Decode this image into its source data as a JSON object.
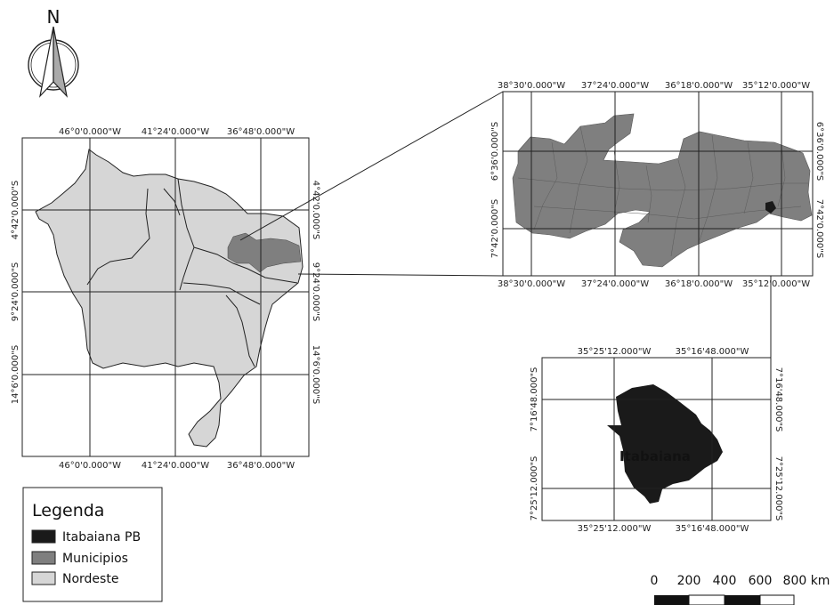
{
  "north": {
    "letter": "N"
  },
  "map_nordeste": {
    "top_lon_labels": [
      "46°0'0.000\"W",
      "41°24'0.000\"W",
      "36°48'0.000\"W"
    ],
    "bottom_lon_labels": [
      "46°0'0.000\"W",
      "41°24'0.000\"W",
      "36°48'0.000\"W"
    ],
    "left_lat_labels": [
      "4°42'0.000\"S",
      "9°24'0.000\"S",
      "14°6'0.000\"S"
    ],
    "right_lat_labels": [
      "4°42'0.000\"S",
      "9°24'0.000\"S",
      "14°6'0.000\"S"
    ]
  },
  "map_paraiba": {
    "top_lon_labels": [
      "38°30'0.000\"W",
      "37°24'0.000\"W",
      "36°18'0.000\"W",
      "35°12'0.000\"W"
    ],
    "bottom_lon_labels": [
      "38°30'0.000\"W",
      "37°24'0.000\"W",
      "36°18'0.000\"W",
      "35°12'0.000\"W"
    ],
    "left_lat_labels": [
      "6°36'0.000\"S",
      "7°42'0.000\"S"
    ],
    "right_lat_labels": [
      "6°36'0.000\"S",
      "7°42'0.000\"S"
    ]
  },
  "map_itabaiana": {
    "label": "Itabaiana",
    "top_lon_labels": [
      "35°25'12.000\"W",
      "35°16'48.000\"W"
    ],
    "bottom_lon_labels": [
      "35°25'12.000\"W",
      "35°16'48.000\"W"
    ],
    "left_lat_labels": [
      "7°16'48.000\"S",
      "7°25'12.000\"S"
    ],
    "right_lat_labels": [
      "7°16'48.000\"S",
      "7°25'12.000\"S"
    ]
  },
  "legend": {
    "title": "Legenda",
    "items": [
      {
        "label": "Itabaiana PB",
        "color": "#1a1a1a"
      },
      {
        "label": "Municipios",
        "color": "#7f7f7f"
      },
      {
        "label": "Nordeste",
        "color": "#d6d6d6"
      }
    ]
  },
  "scale_bar": {
    "labels": [
      "0",
      "200",
      "400",
      "600",
      "800 km"
    ]
  },
  "colors": {
    "region": "#d6d6d6",
    "municipios": "#7f7f7f",
    "itabaiana": "#1a1a1a"
  }
}
